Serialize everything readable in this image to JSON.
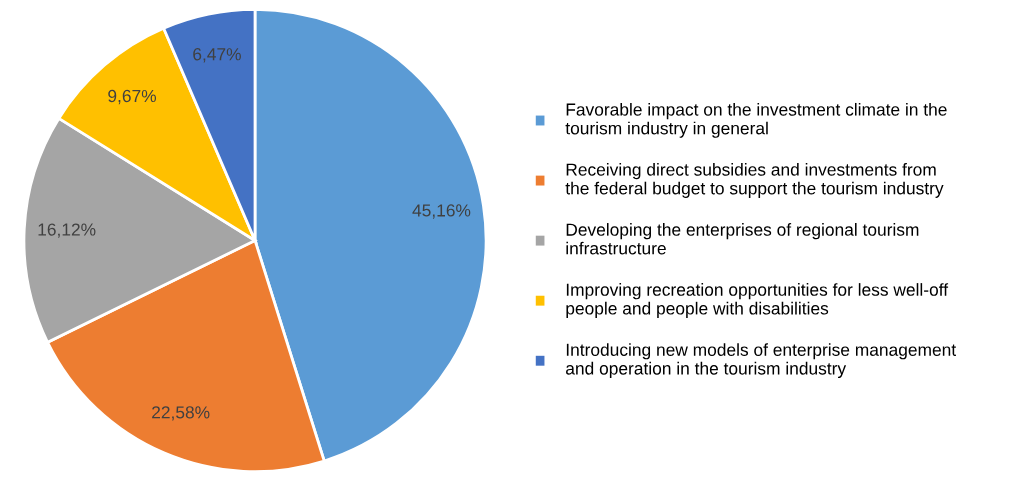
{
  "chart_data": {
    "type": "pie",
    "categories": [
      "Favorable impact on the investment climate in the\ntourism industry in general",
      "Receiving direct subsidies and investments from\nthe federal budget to support the tourism industry",
      "Developing the enterprises of regional tourism\ninfrastructure",
      "Improving recreation opportunities for less well-off\npeople and people with disabilities",
      "Introducing new models of enterprise management\nand operation in the tourism industry"
    ],
    "values": [
      45.16,
      22.58,
      16.12,
      9.67,
      6.47
    ],
    "value_labels": [
      "45,16%",
      "22,58%",
      "16,12%",
      "9,67%",
      "6,47%"
    ],
    "colors": [
      "#5b9bd5",
      "#ed7d31",
      "#a5a5a5",
      "#ffc000",
      "#4472c4"
    ],
    "legend": "right"
  }
}
